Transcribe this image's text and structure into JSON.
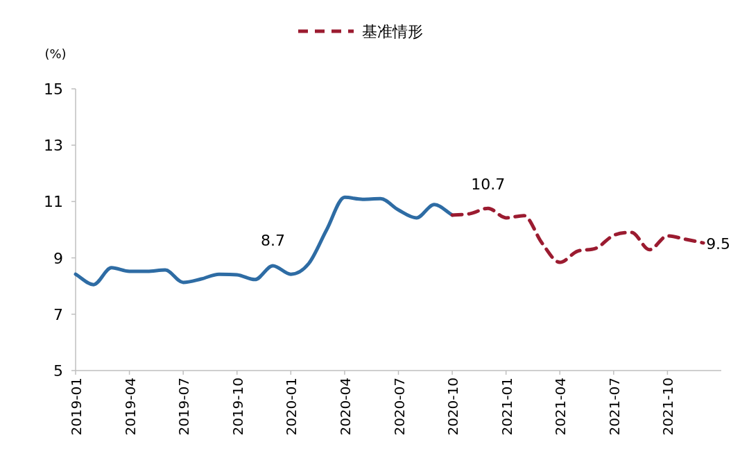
{
  "chart_data": {
    "type": "line",
    "ylabel": "(%)",
    "legend": "top",
    "grid": false,
    "xlim": [
      "2019-01",
      "2022-01"
    ],
    "xticks": [
      "2019-01",
      "2019-04",
      "2019-07",
      "2019-10",
      "2020-01",
      "2020-04",
      "2020-07",
      "2020-10",
      "2021-01",
      "2021-04",
      "2021-07",
      "2021-10"
    ],
    "ylim": [
      5,
      15
    ],
    "yticks": [
      5,
      7,
      9,
      11,
      13,
      15
    ],
    "series": [
      {
        "color": "#2e6ca4",
        "line_style": "solid",
        "x": [
          "2019-01",
          "2019-02",
          "2019-03",
          "2019-04",
          "2019-05",
          "2019-06",
          "2019-07",
          "2019-08",
          "2019-09",
          "2019-10",
          "2019-11",
          "2019-12",
          "2020-01",
          "2020-02",
          "2020-03",
          "2020-04",
          "2020-05",
          "2020-06",
          "2020-07",
          "2020-08",
          "2020-09",
          "2020-10"
        ],
        "values": [
          8.42,
          8.05,
          8.65,
          8.52,
          8.52,
          8.57,
          8.13,
          8.25,
          8.42,
          8.4,
          8.23,
          8.72,
          8.42,
          8.8,
          10.0,
          11.15,
          11.08,
          11.1,
          10.7,
          10.42,
          10.89,
          10.52
        ]
      },
      {
        "name": "基准情形",
        "color": "#9b1b30",
        "line_style": "dashed",
        "x": [
          "2020-10",
          "2020-11",
          "2020-12",
          "2021-01",
          "2021-02",
          "2021-03",
          "2021-04",
          "2021-05",
          "2021-06",
          "2021-07",
          "2021-08",
          "2021-09",
          "2021-10",
          "2021-11",
          "2021-12"
        ],
        "values": [
          10.52,
          10.57,
          10.76,
          10.42,
          10.5,
          9.53,
          8.84,
          9.24,
          9.34,
          9.8,
          9.9,
          9.29,
          9.78,
          9.66,
          9.53
        ]
      }
    ],
    "annotations": [
      {
        "text": "8.7",
        "x": "2019-12",
        "y": 8.7
      },
      {
        "text": "10.7",
        "x": "2020-12",
        "y": 10.7
      },
      {
        "text": "9.5",
        "x": "2021-12",
        "y": 9.5
      }
    ]
  }
}
